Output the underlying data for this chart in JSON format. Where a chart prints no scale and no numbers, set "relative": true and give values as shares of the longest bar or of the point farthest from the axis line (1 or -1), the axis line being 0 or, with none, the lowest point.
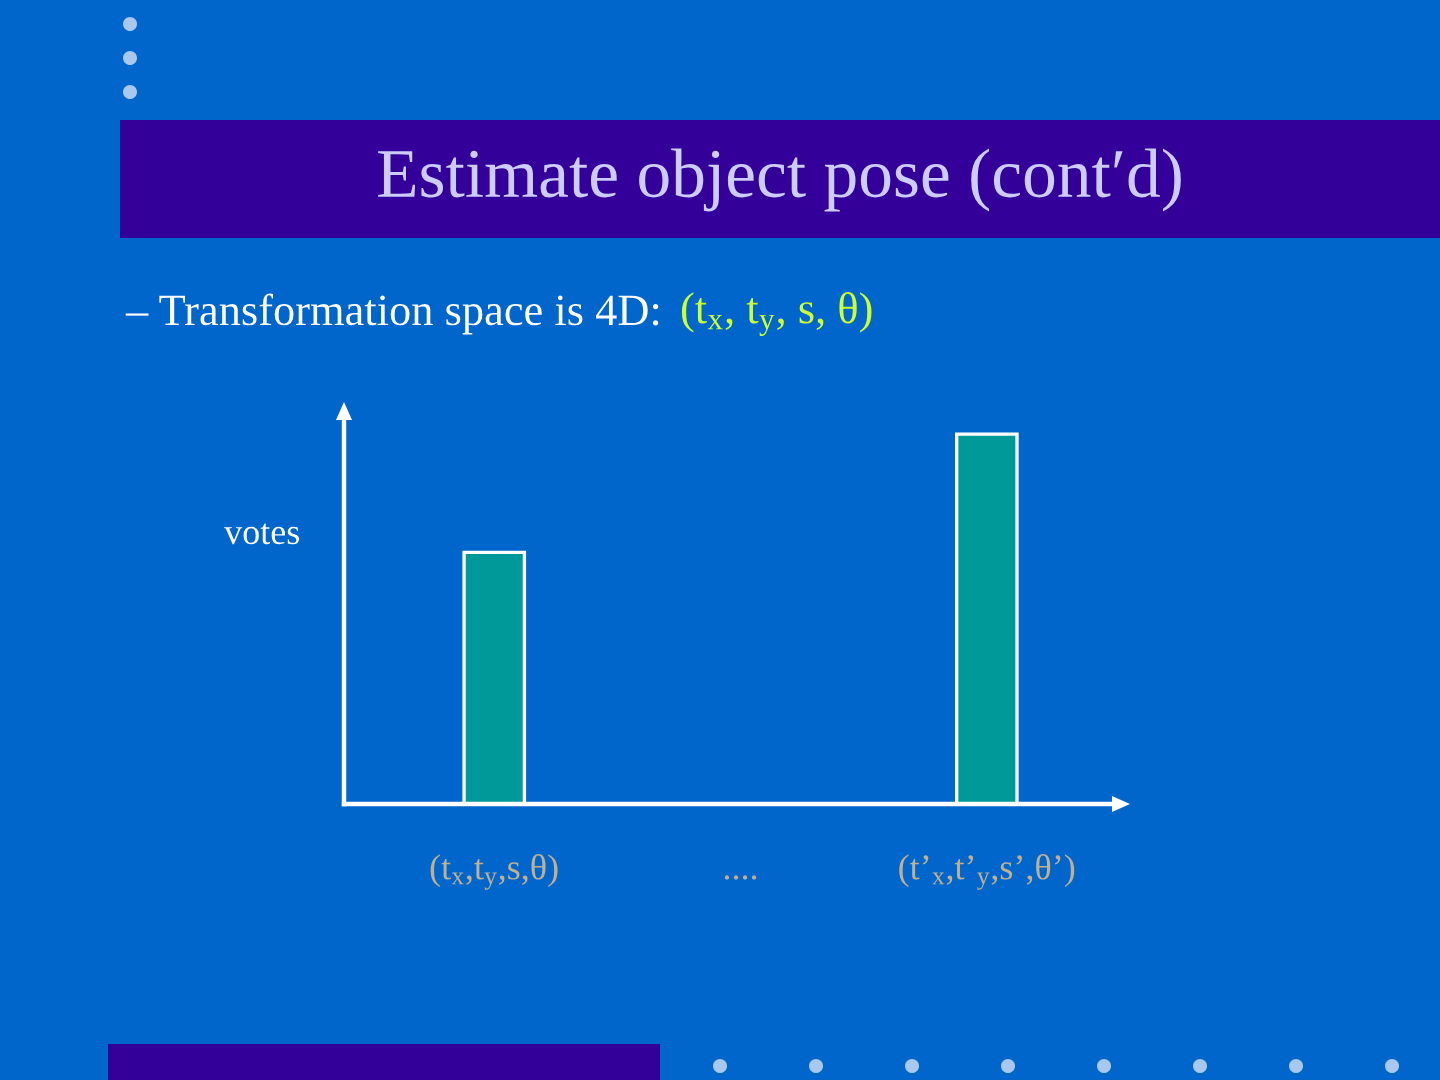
{
  "chart_data": {
    "type": "bar",
    "title": "Estimate object pose (cont′d)",
    "subtitle": "– Transformation space is 4D:",
    "annotations": [
      "(t$_{x}$, t$_{y}$, s, θ)"
    ],
    "ylabel": "votes",
    "categories": [
      "(t$_{x}$,t$_{y}$,s,θ)",
      "....",
      "(t’$_{x}$,t’$_{y}$,s’,θ’)"
    ],
    "values": [
      0.68,
      null,
      1
    ],
    "relative": true,
    "color": "#009999",
    "tick_labels": "x"
  }
}
